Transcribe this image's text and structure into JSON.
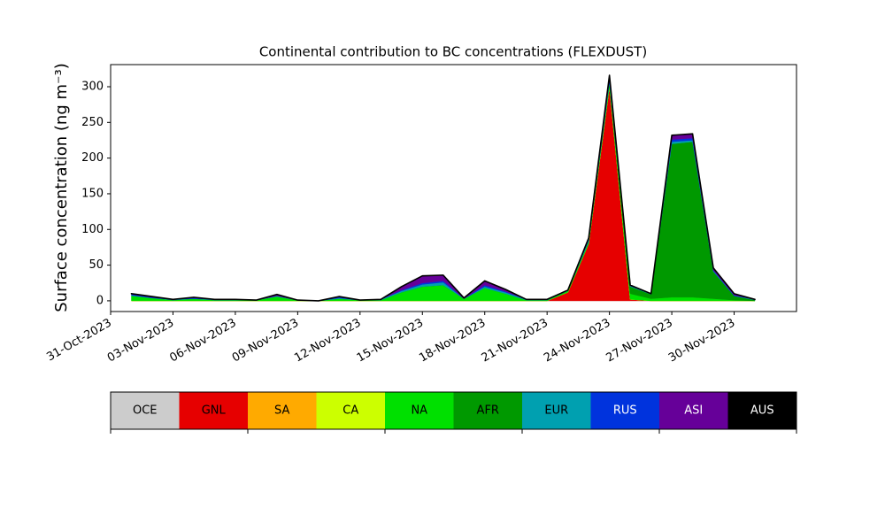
{
  "chart_data": {
    "type": "stacked_area",
    "title": "Continental contribution to BC concentrations (FLEXDUST)",
    "y_label": "Surface concentration (ng m⁻³)",
    "x": [
      "2023-11-01",
      "2023-11-02",
      "2023-11-03",
      "2023-11-04",
      "2023-11-05",
      "2023-11-06",
      "2023-11-07",
      "2023-11-08",
      "2023-11-09",
      "2023-11-10",
      "2023-11-11",
      "2023-11-12",
      "2023-11-13",
      "2023-11-14",
      "2023-11-15",
      "2023-11-16",
      "2023-11-17",
      "2023-11-18",
      "2023-11-19",
      "2023-11-20",
      "2023-11-21",
      "2023-11-22",
      "2023-11-23",
      "2023-11-24",
      "2023-11-25",
      "2023-11-26",
      "2023-11-27",
      "2023-11-28",
      "2023-11-29",
      "2023-11-30",
      "2023-12-01"
    ],
    "series": [
      {
        "name": "OCE",
        "color": "#cccccc",
        "values": [
          0,
          0,
          0,
          0,
          0,
          0,
          0,
          0,
          0,
          0,
          0,
          0,
          0,
          0,
          0,
          0,
          0,
          0,
          0,
          0,
          0,
          0,
          0,
          0,
          0,
          0,
          0,
          0,
          0,
          0,
          0
        ]
      },
      {
        "name": "GNL",
        "color": "#e60000",
        "values": [
          0,
          0,
          0,
          0,
          0,
          0,
          0,
          0,
          0,
          0,
          0,
          0,
          0,
          0,
          0,
          0,
          0,
          0,
          0,
          0,
          0,
          12,
          80,
          300,
          2,
          0,
          0,
          0,
          0,
          0,
          0
        ]
      },
      {
        "name": "SA",
        "color": "#ffaa00",
        "values": [
          0,
          0,
          0,
          0,
          0,
          0,
          0,
          0,
          0,
          0,
          0,
          0,
          0,
          0,
          0,
          0,
          0,
          0,
          0,
          0,
          0,
          0,
          0,
          0,
          0,
          0,
          0,
          0,
          0,
          0,
          0
        ]
      },
      {
        "name": "CA",
        "color": "#ccff00",
        "values": [
          0,
          0,
          0,
          0,
          0,
          0,
          0,
          0,
          0,
          0,
          0,
          0,
          0,
          0,
          0,
          0,
          0,
          0,
          0,
          0,
          0,
          0,
          0,
          0,
          0,
          0,
          0,
          0,
          0,
          0,
          0
        ]
      },
      {
        "name": "NA",
        "color": "#00e000",
        "values": [
          7,
          4,
          1,
          3,
          1,
          1,
          1,
          6,
          1,
          0,
          3,
          1,
          1,
          12,
          20,
          22,
          3,
          18,
          10,
          1,
          1,
          2,
          3,
          6,
          8,
          3,
          5,
          5,
          3,
          1,
          0
        ]
      },
      {
        "name": "AFR",
        "color": "#009900",
        "values": [
          0,
          0,
          0,
          0,
          0,
          0,
          0,
          0,
          0,
          0,
          0,
          0,
          0,
          0,
          0,
          0,
          0,
          0,
          0,
          0,
          0,
          0,
          0,
          0,
          10,
          6,
          215,
          218,
          38,
          6,
          1
        ]
      },
      {
        "name": "EUR",
        "color": "#00a0b0",
        "values": [
          1,
          0,
          1,
          0,
          1,
          1,
          0,
          1,
          0,
          0,
          1,
          0,
          1,
          2,
          3,
          4,
          0,
          2,
          2,
          1,
          1,
          1,
          2,
          2,
          1,
          1,
          3,
          2,
          1,
          0,
          1
        ]
      },
      {
        "name": "RUS",
        "color": "#0033dd",
        "values": [
          1,
          1,
          0,
          1,
          0,
          0,
          0,
          0,
          0,
          0,
          1,
          0,
          0,
          1,
          2,
          2,
          0,
          2,
          1,
          0,
          0,
          0,
          1,
          3,
          0,
          0,
          3,
          3,
          1,
          1,
          0
        ]
      },
      {
        "name": "ASI",
        "color": "#660099",
        "values": [
          1,
          1,
          0,
          1,
          0,
          0,
          0,
          2,
          0,
          0,
          1,
          0,
          0,
          5,
          10,
          8,
          1,
          6,
          3,
          0,
          0,
          0,
          2,
          5,
          1,
          0,
          6,
          6,
          3,
          2,
          0
        ]
      },
      {
        "name": "AUS",
        "color": "#000000",
        "values": [
          0,
          0,
          0,
          0,
          0,
          0,
          0,
          0,
          0,
          0,
          0,
          0,
          0,
          0,
          0,
          0,
          0,
          0,
          0,
          0,
          0,
          0,
          0,
          0,
          0,
          0,
          0,
          0,
          0,
          0,
          0
        ]
      }
    ],
    "xlim": [
      "2023-10-31",
      "2023-12-03"
    ],
    "xticks": [
      {
        "value": "2023-10-31",
        "label": "31-Oct-2023"
      },
      {
        "value": "2023-11-03",
        "label": "03-Nov-2023"
      },
      {
        "value": "2023-11-06",
        "label": "06-Nov-2023"
      },
      {
        "value": "2023-11-09",
        "label": "09-Nov-2023"
      },
      {
        "value": "2023-11-12",
        "label": "12-Nov-2023"
      },
      {
        "value": "2023-11-15",
        "label": "15-Nov-2023"
      },
      {
        "value": "2023-11-18",
        "label": "18-Nov-2023"
      },
      {
        "value": "2023-11-21",
        "label": "21-Nov-2023"
      },
      {
        "value": "2023-11-24",
        "label": "24-Nov-2023"
      },
      {
        "value": "2023-11-27",
        "label": "27-Nov-2023"
      },
      {
        "value": "2023-11-30",
        "label": "30-Nov-2023"
      }
    ],
    "ylim": [
      -15,
      331
    ],
    "yticks": [
      0,
      50,
      100,
      150,
      200,
      250,
      300
    ],
    "legend": "bottom"
  }
}
